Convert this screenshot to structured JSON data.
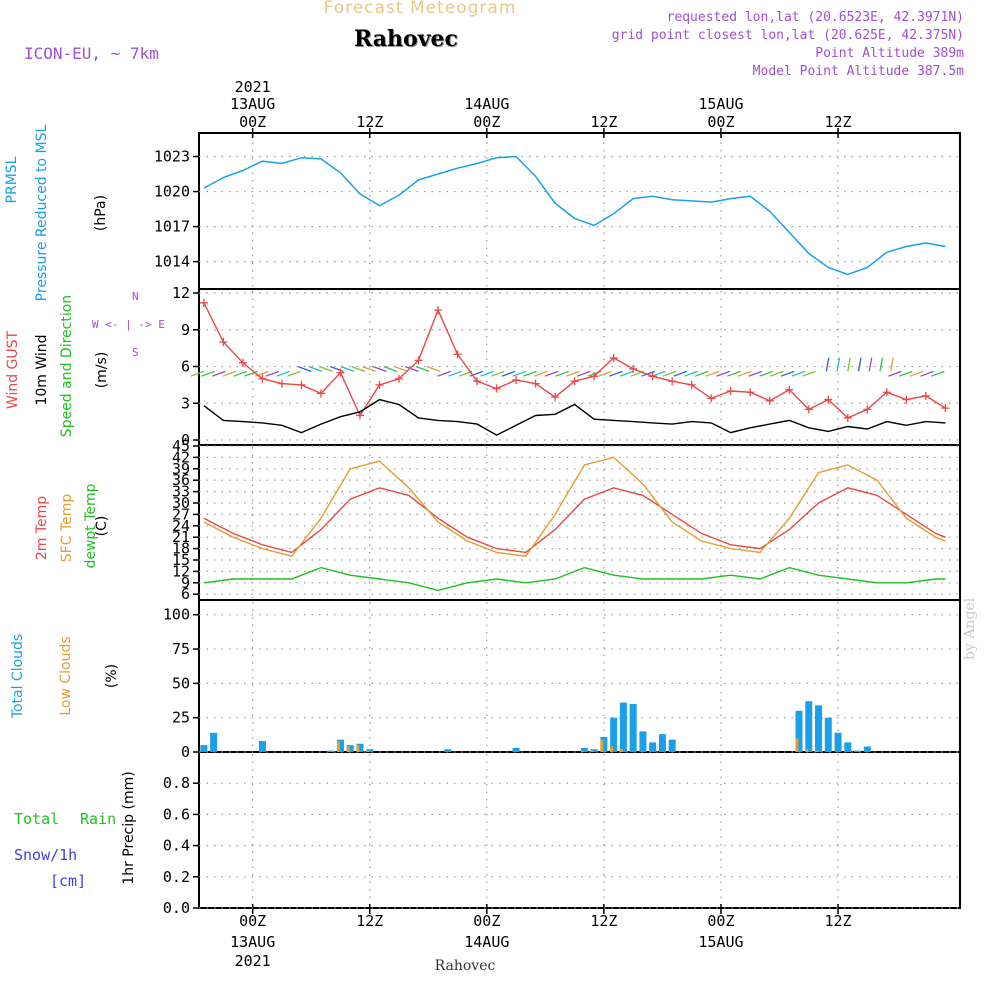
{
  "header": {
    "title": "Forecast Meteogram",
    "place": "Rahovec",
    "model": "ICON-EU, ~ 7km",
    "requested": "requested lon,lat (20.6523E, 42.3971N)",
    "grid_point": "grid point closest lon,lat (20.625E, 42.375N)",
    "point_altitude": "Point Altitude 389m",
    "model_altitude": "Model Point Altitude 387.5m",
    "watermark": "by Angel",
    "bottom_place": "Rahovec"
  },
  "time_axis": {
    "year": "2021",
    "tick_labels": [
      "00Z",
      "12Z",
      "00Z",
      "12Z",
      "00Z",
      "12Z"
    ],
    "date_labels": [
      "13AUG",
      "14AUG",
      "15AUG"
    ]
  },
  "panel_labels": {
    "pressure": [
      "PRMSL",
      "Pressure Reduced to MSL",
      "(hPa)"
    ],
    "wind": [
      "Wind GUST",
      "10m Wind",
      "Speed and Direction",
      "(m/s)"
    ],
    "compass": [
      "N",
      "W <- | -> E",
      "S"
    ],
    "temp": [
      "2m Temp",
      "SFC Temp",
      "dewpt Temp",
      "(C)"
    ],
    "clouds": [
      "Total Clouds",
      "Low Clouds",
      "(%)"
    ],
    "precip": [
      "Total",
      "Rain",
      "Snow/1h",
      "[cm]",
      "1hr Precip (mm)"
    ]
  },
  "colors": {
    "pressure": "#1aa0e8",
    "gust": "#e84848",
    "wind": "#000000",
    "temp2m": "#e84848",
    "sfc": "#e0a030",
    "dewpt": "#20c020",
    "total_clouds": "#1aa0e8",
    "low_clouds": "#e0a030",
    "label_rain": "#20c020",
    "label_snow": "#4040e0",
    "purple": "#a050d0"
  },
  "chart_data": [
    {
      "type": "line",
      "title": "PRMSL Pressure Reduced to MSL",
      "ylabel": "(hPa)",
      "x_unit": "hours since 13AUG 00Z",
      "ylim": [
        1012,
        1024.5
      ],
      "yticks": [
        1014,
        1017,
        1020,
        1023
      ],
      "x": [
        -5,
        -3,
        -1,
        1,
        3,
        5,
        7,
        9,
        11,
        13,
        15,
        17,
        19,
        21,
        23,
        25,
        27,
        29,
        31,
        33,
        35,
        37,
        39,
        41,
        43,
        45,
        47,
        49,
        51,
        53,
        55,
        57,
        59,
        61,
        63,
        65,
        67,
        69,
        71
      ],
      "values": [
        1020.3,
        1021.2,
        1021.8,
        1022.6,
        1022.4,
        1022.9,
        1022.8,
        1021.6,
        1019.8,
        1018.8,
        1019.7,
        1021.0,
        1021.5,
        1022.0,
        1022.4,
        1022.9,
        1023.0,
        1021.3,
        1019.0,
        1017.7,
        1017.1,
        1018.1,
        1019.4,
        1019.6,
        1019.3,
        1019.2,
        1019.1,
        1019.4,
        1019.6,
        1018.3,
        1016.5,
        1014.7,
        1013.5,
        1012.9,
        1013.5,
        1014.8,
        1015.3,
        1015.6,
        1015.3
      ],
      "series": [
        {
          "name": "PRMSL",
          "color": "#1aa0e8"
        }
      ]
    },
    {
      "type": "line",
      "title": "Wind GUST / 10m Wind Speed and Direction",
      "ylabel": "(m/s)",
      "x_unit": "hours since 13AUG 00Z",
      "ylim": [
        0,
        12
      ],
      "yticks": [
        0,
        3,
        6,
        9,
        12
      ],
      "x": [
        -5,
        -3,
        -1,
        1,
        3,
        5,
        7,
        9,
        11,
        13,
        15,
        17,
        19,
        21,
        23,
        25,
        27,
        29,
        31,
        33,
        35,
        37,
        39,
        41,
        43,
        45,
        47,
        49,
        51,
        53,
        55,
        57,
        59,
        61,
        63,
        65,
        67,
        69,
        71
      ],
      "series": [
        {
          "name": "Wind GUST",
          "color": "#e84848",
          "values": [
            11.2,
            8.0,
            6.3,
            5.0,
            4.6,
            4.5,
            3.8,
            5.5,
            2.0,
            4.5,
            5.0,
            6.5,
            10.6,
            7.0,
            4.8,
            4.2,
            4.9,
            4.6,
            3.5,
            4.8,
            5.2,
            6.7,
            5.8,
            5.2,
            4.8,
            4.5,
            3.4,
            4.0,
            3.9,
            3.2,
            4.1,
            2.5,
            3.3,
            1.8,
            2.5,
            3.9,
            3.3,
            3.6,
            2.6
          ]
        },
        {
          "name": "10m Wind",
          "color": "#000000",
          "values": [
            2.8,
            1.6,
            1.5,
            1.4,
            1.2,
            0.6,
            1.3,
            1.9,
            2.3,
            3.3,
            2.9,
            1.8,
            1.6,
            1.5,
            1.3,
            0.4,
            1.2,
            2.0,
            2.1,
            2.9,
            1.7,
            1.6,
            1.5,
            1.4,
            1.3,
            1.5,
            1.4,
            0.6,
            1.0,
            1.3,
            1.6,
            1.0,
            0.7,
            1.1,
            0.9,
            1.5,
            1.2,
            1.5,
            1.4
          ]
        }
      ],
      "arrow_direction": "wind barbs across panel at about 5.5 m/s level"
    },
    {
      "type": "line",
      "title": "2m Temp / SFC Temp / dewpt Temp",
      "ylabel": "(C)",
      "x_unit": "hours since 13AUG 00Z",
      "ylim": [
        5,
        45
      ],
      "yticks": [
        6,
        9,
        12,
        15,
        18,
        21,
        24,
        27,
        30,
        33,
        36,
        39,
        42,
        45
      ],
      "x": [
        -5,
        -2,
        1,
        4,
        7,
        10,
        13,
        16,
        19,
        22,
        25,
        28,
        31,
        34,
        37,
        40,
        43,
        46,
        49,
        52,
        55,
        58,
        61,
        64,
        67,
        70,
        71
      ],
      "series": [
        {
          "name": "2m Temp",
          "color": "#e84848",
          "values": [
            26,
            22,
            19,
            17,
            23,
            31,
            34,
            32,
            26,
            21,
            18,
            17,
            23,
            31,
            34,
            32,
            27,
            22,
            19,
            18,
            23,
            30,
            34,
            32,
            27,
            22,
            21
          ]
        },
        {
          "name": "SFC Temp",
          "color": "#e0a030",
          "values": [
            25,
            21,
            18,
            16,
            26,
            39,
            41,
            34,
            25,
            20,
            17,
            16,
            27,
            40,
            42,
            35,
            25,
            20,
            18,
            17,
            26,
            38,
            40,
            36,
            26,
            21,
            20
          ]
        },
        {
          "name": "dewpt Temp",
          "color": "#20c020",
          "values": [
            9,
            10,
            10,
            10,
            13,
            11,
            10,
            9,
            7,
            9,
            10,
            9,
            10,
            13,
            11,
            10,
            10,
            10,
            11,
            10,
            13,
            11,
            10,
            9,
            9,
            10,
            10
          ]
        }
      ]
    },
    {
      "type": "bar",
      "title": "Total Clouds / Low Clouds",
      "ylabel": "(%)",
      "x_unit": "hours since 13AUG 00Z",
      "ylim": [
        0,
        110
      ],
      "yticks": [
        0,
        25,
        50,
        75,
        100
      ],
      "x": [
        -5,
        -4,
        1,
        8,
        9,
        10,
        11,
        12,
        20,
        27,
        34,
        35,
        36,
        37,
        38,
        39,
        40,
        41,
        42,
        43,
        56,
        57,
        58,
        59,
        60,
        61,
        62,
        63,
        64,
        65,
        66
      ],
      "series": [
        {
          "name": "Total Clouds",
          "color": "#1aa0e8",
          "values": [
            5,
            14,
            8,
            1,
            9,
            5,
            6,
            2,
            2,
            3,
            3,
            2,
            11,
            25,
            36,
            35,
            15,
            7,
            13,
            9,
            30,
            37,
            34,
            25,
            14,
            7,
            1,
            4,
            0,
            0,
            0
          ]
        },
        {
          "name": "Low Clouds",
          "color": "#e0a030",
          "values": [
            0,
            0,
            0,
            0,
            8,
            4,
            5,
            1,
            0,
            0,
            1,
            1,
            9,
            4,
            2,
            0,
            0,
            0,
            0,
            0,
            10,
            2,
            1,
            0,
            0,
            0,
            0,
            0,
            0,
            0,
            0
          ]
        }
      ]
    },
    {
      "type": "bar",
      "title": "1hr Precip",
      "ylabel": "1hr Precip (mm)",
      "ylim": [
        0,
        1.0
      ],
      "yticks": [
        0,
        0.2,
        0.4,
        0.6,
        0.8
      ],
      "series": [
        {
          "name": "Total",
          "values": []
        },
        {
          "name": "Rain",
          "values": []
        },
        {
          "name": "Snow/1h",
          "values": []
        }
      ]
    }
  ]
}
